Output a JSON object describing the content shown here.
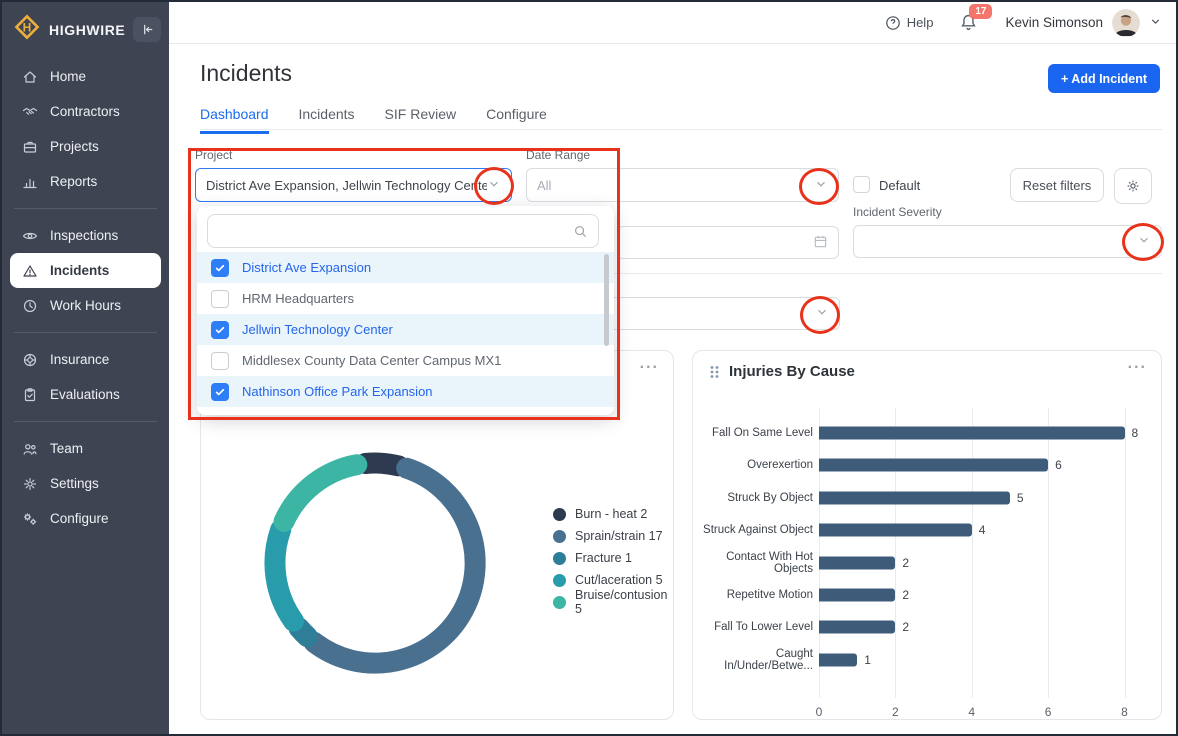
{
  "topbar": {
    "help_label": "Help",
    "notification_count": "17",
    "user_name": "Kevin Simonson"
  },
  "sidebar": {
    "brand": "HIGHWIRE",
    "items": [
      {
        "label": "Home",
        "icon": "home",
        "group": 0,
        "active": false
      },
      {
        "label": "Contractors",
        "icon": "handshake",
        "group": 0,
        "active": false
      },
      {
        "label": "Projects",
        "icon": "briefcase",
        "group": 0,
        "active": false
      },
      {
        "label": "Reports",
        "icon": "bar-chart",
        "group": 0,
        "active": false
      },
      {
        "label": "Inspections",
        "icon": "eye",
        "group": 1,
        "active": false
      },
      {
        "label": "Incidents",
        "icon": "warning-triangle",
        "group": 1,
        "active": true
      },
      {
        "label": "Work Hours",
        "icon": "clock",
        "group": 1,
        "active": false
      },
      {
        "label": "Insurance",
        "icon": "lifebuoy",
        "group": 2,
        "active": false
      },
      {
        "label": "Evaluations",
        "icon": "clipboard",
        "group": 2,
        "active": false
      },
      {
        "label": "Team",
        "icon": "team",
        "group": 3,
        "active": false
      },
      {
        "label": "Settings",
        "icon": "gear",
        "group": 3,
        "active": false
      },
      {
        "label": "Configure",
        "icon": "gears",
        "group": 3,
        "active": false
      }
    ]
  },
  "page": {
    "title": "Incidents",
    "add_button": "+ Add Incident",
    "tabs": [
      {
        "label": "Dashboard",
        "active": true
      },
      {
        "label": "Incidents",
        "active": false
      },
      {
        "label": "SIF Review",
        "active": false
      },
      {
        "label": "Configure",
        "active": false
      }
    ]
  },
  "filters": {
    "project_label": "Project",
    "project_value": "District Ave Expansion, Jellwin Technology Center...",
    "date_range_label": "Date Range",
    "date_range_placeholder": "All",
    "default_label": "Default",
    "reset_button": "Reset filters",
    "incident_severity_label": "Incident Severity"
  },
  "project_dropdown": {
    "search_placeholder": "",
    "options": [
      {
        "label": "District Ave Expansion",
        "checked": true
      },
      {
        "label": "HRM Headquarters",
        "checked": false
      },
      {
        "label": "Jellwin Technology Center",
        "checked": true
      },
      {
        "label": "Middlesex County Data Center Campus MX1",
        "checked": false
      },
      {
        "label": "Nathinson Office Park Expansion",
        "checked": true
      }
    ]
  },
  "cards": {
    "left_menu": "...",
    "right": {
      "title": "Injuries By Cause",
      "menu": "..."
    }
  },
  "chart_data": [
    {
      "type": "pie",
      "subtype": "donut",
      "labels": [
        "Burn - heat",
        "Sprain/strain",
        "Fracture",
        "Cut/laceration",
        "Bruise/contusion"
      ],
      "values": [
        2,
        17,
        1,
        5,
        5
      ],
      "colors": [
        "#2e3a50",
        "#4a7090",
        "#2d7e96",
        "#289cab",
        "#3cb5a4"
      ],
      "legend_position": "right",
      "start_angle": -8
    },
    {
      "type": "bar",
      "orientation": "horizontal",
      "title": "Injuries By Cause",
      "categories": [
        "Fall On Same Level",
        "Overexertion",
        "Struck By Object",
        "Struck Against Object",
        "Contact With Hot Objects",
        "Repetitve Motion",
        "Fall To Lower Level",
        "Caught In/Under/Betwe..."
      ],
      "values": [
        8,
        6,
        5,
        4,
        2,
        2,
        2,
        1
      ],
      "xlim": [
        0,
        8.8
      ],
      "xticks": [
        0,
        2,
        4,
        6,
        8
      ],
      "bar_color": "#3e5c7a",
      "grid": true
    }
  ],
  "annotations": {
    "color": "#e8321b"
  }
}
